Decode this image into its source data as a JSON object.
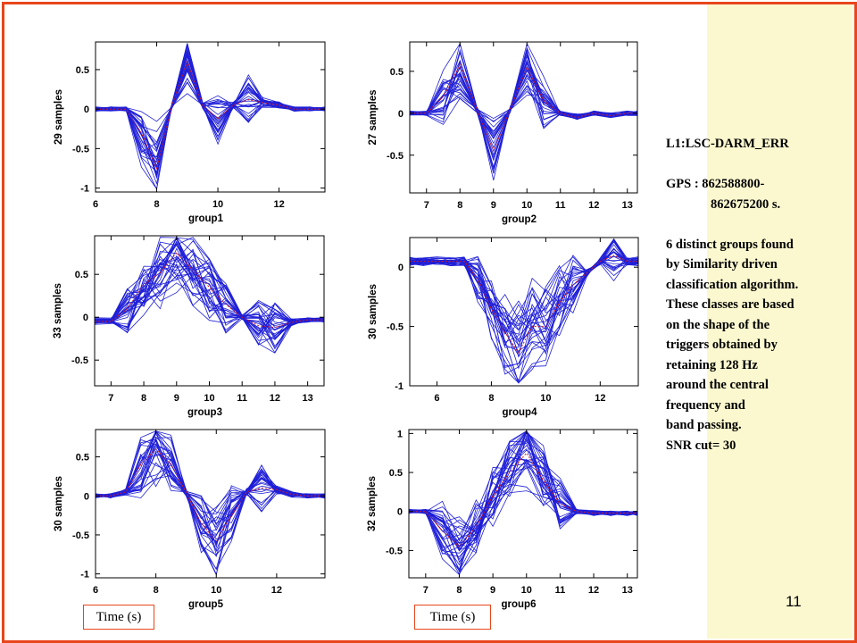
{
  "slide": {
    "accent_color": "#e8461c",
    "sidebar_color": "#fbf8cf",
    "page_number": "11",
    "time_label_left": "Time (s)",
    "time_label_right": "Time (s)"
  },
  "notes": {
    "channel": "L1:LSC-DARM_ERR",
    "gps_line1": "GPS : 862588800-",
    "gps_line2": "862675200 s.",
    "body": [
      "6 distinct groups found",
      "by Similarity driven",
      "classification algorithm.",
      "These classes are based",
      "on the shape of the",
      "triggers obtained by",
      "retaining 128 Hz",
      "around the central",
      "frequency and",
      "band passing.",
      "SNR cut= 30"
    ]
  },
  "chart_data": [
    {
      "type": "line",
      "xlabel": "group1",
      "ylabel": "29 samples",
      "n_samples": 29,
      "xlim": [
        6,
        13.5
      ],
      "ylim": [
        -1.05,
        0.85
      ],
      "xticks": [
        6,
        8,
        10,
        12
      ],
      "yticks": [
        -1,
        -0.5,
        0,
        0.5
      ],
      "x": [
        6,
        6.5,
        7,
        7.5,
        8,
        8.5,
        9,
        9.5,
        10,
        10.5,
        11,
        11.5,
        12,
        12.5,
        13,
        13.5
      ],
      "mean": [
        0,
        0,
        0,
        -0.3,
        -0.75,
        0.05,
        0.6,
        0.05,
        -0.12,
        0.05,
        0.12,
        0.08,
        0.05,
        0.0,
        0.0,
        0.0
      ]
    },
    {
      "type": "line",
      "xlabel": "group2",
      "ylabel": "27 samples",
      "n_samples": 27,
      "xlim": [
        6.5,
        13.3
      ],
      "ylim": [
        -0.95,
        0.85
      ],
      "xticks": [
        7,
        8,
        9,
        10,
        11,
        12,
        13
      ],
      "yticks": [
        -0.5,
        0,
        0.5
      ],
      "x": [
        6.5,
        7,
        7.5,
        8,
        8.5,
        9,
        9.5,
        10,
        10.5,
        11,
        11.5,
        12,
        12.5,
        13,
        13.3
      ],
      "mean": [
        0,
        0,
        0.2,
        0.58,
        0.05,
        -0.45,
        0.05,
        0.55,
        0.15,
        0.0,
        -0.05,
        0.0,
        -0.03,
        0.0,
        0.0
      ]
    },
    {
      "type": "line",
      "xlabel": "group3",
      "ylabel": "33 samples",
      "n_samples": 33,
      "xlim": [
        6.5,
        13.5
      ],
      "ylim": [
        -0.8,
        0.95
      ],
      "xticks": [
        7,
        8,
        9,
        10,
        11,
        12,
        13
      ],
      "yticks": [
        -0.5,
        0,
        0.5
      ],
      "x": [
        6.5,
        7,
        7.5,
        8,
        8.5,
        9,
        9.5,
        10,
        10.5,
        11,
        11.5,
        12,
        12.5,
        13,
        13.5
      ],
      "mean": [
        -0.05,
        -0.05,
        0.1,
        0.38,
        0.52,
        0.75,
        0.55,
        0.35,
        0.15,
        0.0,
        -0.1,
        -0.12,
        -0.06,
        -0.03,
        -0.03
      ]
    },
    {
      "type": "line",
      "xlabel": "group4",
      "ylabel": "30 samples",
      "n_samples": 30,
      "xlim": [
        5,
        13.4
      ],
      "ylim": [
        -1.0,
        0.25
      ],
      "xticks": [
        6,
        8,
        10,
        12
      ],
      "yticks": [
        -1,
        -0.5,
        0
      ],
      "x": [
        5,
        5.5,
        6,
        6.5,
        7,
        7.5,
        8,
        8.5,
        9,
        9.5,
        10,
        10.5,
        11,
        11.5,
        12,
        12.5,
        13,
        13.4
      ],
      "mean": [
        0.05,
        0.05,
        0.05,
        0.05,
        0.05,
        -0.1,
        -0.35,
        -0.55,
        -0.72,
        -0.5,
        -0.5,
        -0.3,
        -0.15,
        -0.05,
        0.05,
        0.1,
        0.05,
        0.05
      ]
    },
    {
      "type": "line",
      "xlabel": "group5",
      "ylabel": "30 samples",
      "n_samples": 30,
      "xlim": [
        6,
        13.6
      ],
      "ylim": [
        -1.05,
        0.85
      ],
      "xticks": [
        6,
        8,
        10,
        12
      ],
      "yticks": [
        -1,
        -0.5,
        0,
        0.5
      ],
      "x": [
        6,
        6.5,
        7,
        7.5,
        8,
        8.5,
        9,
        9.5,
        10,
        10.5,
        11,
        11.5,
        12,
        12.5,
        13,
        13.6
      ],
      "mean": [
        0,
        0,
        0.05,
        0.4,
        0.6,
        0.4,
        0.05,
        -0.35,
        -0.58,
        -0.25,
        0.05,
        0.1,
        0.08,
        0.02,
        0.0,
        0.0
      ]
    },
    {
      "type": "line",
      "xlabel": "group6",
      "ylabel": "32 samples",
      "n_samples": 32,
      "xlim": [
        6.5,
        13.3
      ],
      "ylim": [
        -0.85,
        1.05
      ],
      "xticks": [
        7,
        8,
        9,
        10,
        11,
        12,
        13
      ],
      "yticks": [
        -0.5,
        0,
        0.5,
        1
      ],
      "x": [
        6.5,
        7,
        7.5,
        8,
        8.5,
        9,
        9.5,
        10,
        10.5,
        11,
        11.5,
        12,
        12.5,
        13,
        13.3
      ],
      "mean": [
        0,
        0,
        -0.25,
        -0.45,
        -0.2,
        0.2,
        0.5,
        0.75,
        0.4,
        0.1,
        0.0,
        -0.02,
        -0.02,
        -0.02,
        -0.02
      ]
    }
  ]
}
